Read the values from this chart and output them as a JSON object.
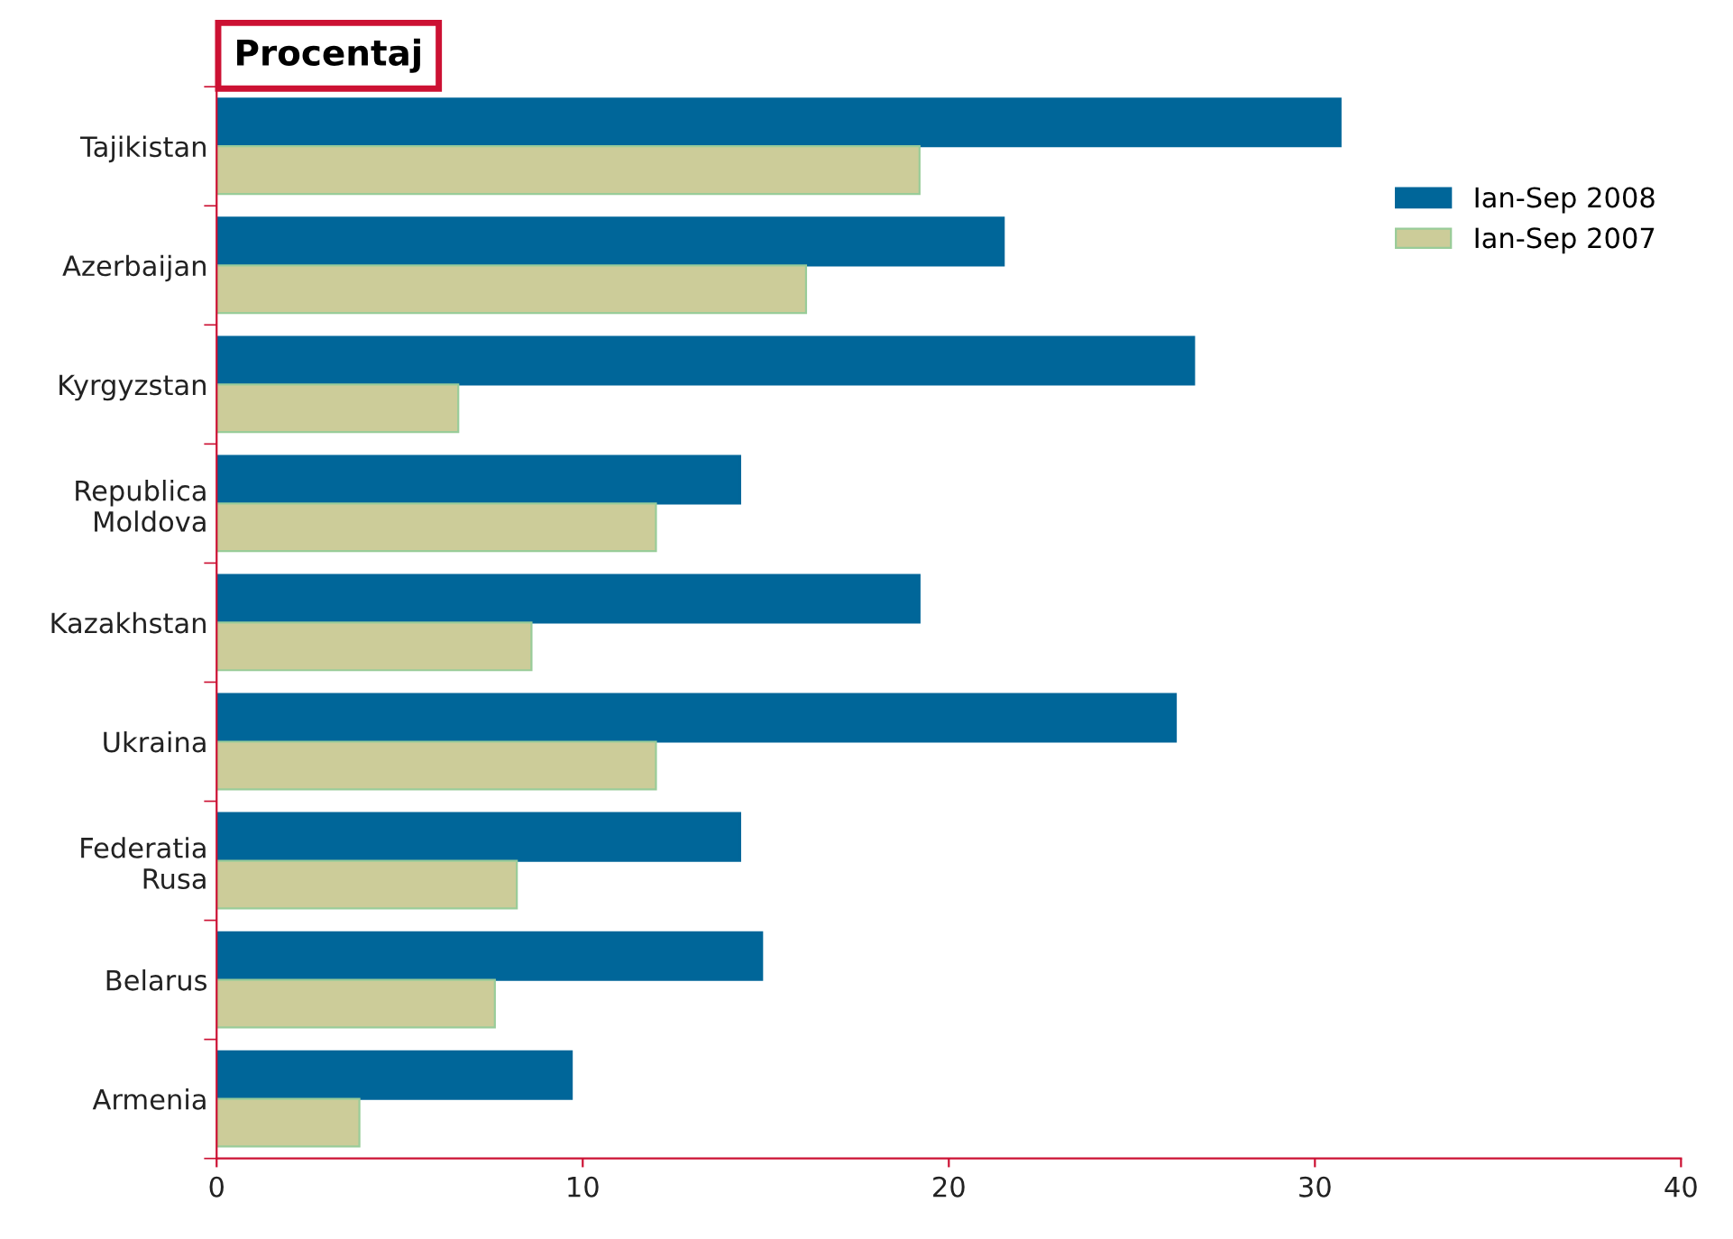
{
  "chart_data": {
    "type": "bar",
    "orientation": "horizontal",
    "title": "Procentaj",
    "categories": [
      "Tajikistan",
      "Azerbaijan",
      "Kyrgyzstan",
      "Republica\nMoldova",
      "Kazakhstan",
      "Ukraina",
      "Federatia\nRusa",
      "Belarus",
      "Armenia"
    ],
    "series": [
      {
        "name": "Ian-Sep 2008",
        "color": "#006699",
        "values": [
          30.7,
          21.5,
          26.7,
          14.3,
          19.2,
          26.2,
          14.3,
          14.9,
          9.7
        ]
      },
      {
        "name": "Ian-Sep 2007",
        "color": "#cccc99",
        "values": [
          19.2,
          16.1,
          6.6,
          12.0,
          8.6,
          12.0,
          8.2,
          7.6,
          3.9
        ]
      }
    ],
    "xlim": [
      0,
      40
    ],
    "xticks": [
      0,
      10,
      20,
      30,
      40
    ],
    "grid": false,
    "legend": "top right"
  }
}
